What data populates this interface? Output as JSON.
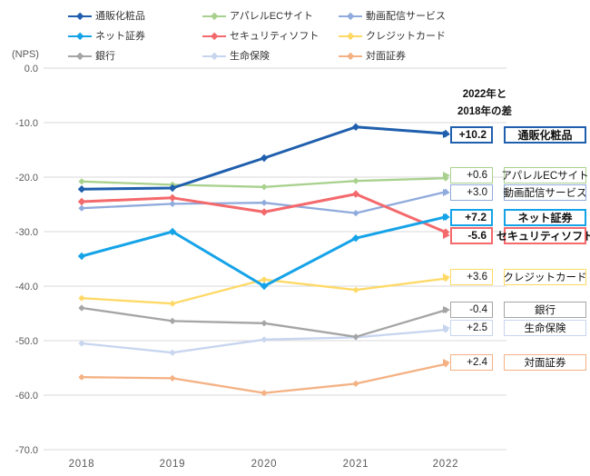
{
  "chart": {
    "nps_label": "(NPS)",
    "diff_header": [
      "2022年と",
      "2018年の差"
    ]
  },
  "chart_data": {
    "type": "line",
    "title": "",
    "ylabel": "(NPS)",
    "x_labels": [
      "2018",
      "2019",
      "2020",
      "2021",
      "2022"
    ],
    "y_tick_labels": [
      "0.0",
      "-10.0",
      "-20.0",
      "-30.0",
      "-40.0",
      "-50.0",
      "-60.0",
      "-70.0"
    ],
    "y_tick_values": [
      0,
      -10,
      -20,
      -30,
      -40,
      -50,
      -60,
      -70
    ],
    "ylim": [
      -70,
      0
    ],
    "grid": true,
    "legend_position": "top",
    "annotation_header": "2022年と2018年の差",
    "series": [
      {
        "id": "mail-order-cosmetics",
        "name": "通販化粧品",
        "color": "#1F5FAD",
        "emphasized": true,
        "values": [
          -22.2,
          -22.0,
          -16.5,
          -10.8,
          -12.0
        ],
        "diff_2022_2018": "+10.2"
      },
      {
        "id": "apparel-ec-site",
        "name": "アパレルECサイト",
        "color": "#A9D18E",
        "emphasized": false,
        "values": [
          -20.8,
          -21.4,
          -21.8,
          -20.7,
          -20.2
        ],
        "diff_2022_2018": "+0.6"
      },
      {
        "id": "video-streaming-service",
        "name": "動画配信サービス",
        "color": "#8FAADC",
        "emphasized": false,
        "values": [
          -25.7,
          -24.9,
          -24.7,
          -26.6,
          -22.7
        ],
        "diff_2022_2018": "+3.0"
      },
      {
        "id": "online-securities",
        "name": "ネット証券",
        "color": "#15A3E8",
        "emphasized": true,
        "values": [
          -34.5,
          -30.0,
          -40.0,
          -31.2,
          -27.3
        ],
        "diff_2022_2018": "+7.2"
      },
      {
        "id": "security-software",
        "name": "セキュリティソフト",
        "color": "#F4696C",
        "emphasized": true,
        "values": [
          -24.5,
          -23.8,
          -26.4,
          -23.1,
          -30.1
        ],
        "diff_2022_2018": "-5.6"
      },
      {
        "id": "credit-card",
        "name": "クレジットカード",
        "color": "#FFD966",
        "emphasized": false,
        "values": [
          -42.2,
          -43.2,
          -38.8,
          -40.7,
          -38.6
        ],
        "diff_2022_2018": "+3.6"
      },
      {
        "id": "bank",
        "name": "銀行",
        "color": "#A5A5A5",
        "emphasized": false,
        "values": [
          -44.0,
          -46.4,
          -46.8,
          -49.3,
          -44.4
        ],
        "diff_2022_2018": "-0.4"
      },
      {
        "id": "life-insurance",
        "name": "生命保険",
        "color": "#C7D5EF",
        "emphasized": false,
        "values": [
          -50.5,
          -52.2,
          -49.8,
          -49.4,
          -48.0
        ],
        "diff_2022_2018": "+2.5"
      },
      {
        "id": "face-to-face-securities",
        "name": "対面証券",
        "color": "#F4B183",
        "emphasized": false,
        "values": [
          -56.7,
          -56.9,
          -59.6,
          -57.9,
          -54.3
        ],
        "diff_2022_2018": "+2.4"
      }
    ]
  }
}
